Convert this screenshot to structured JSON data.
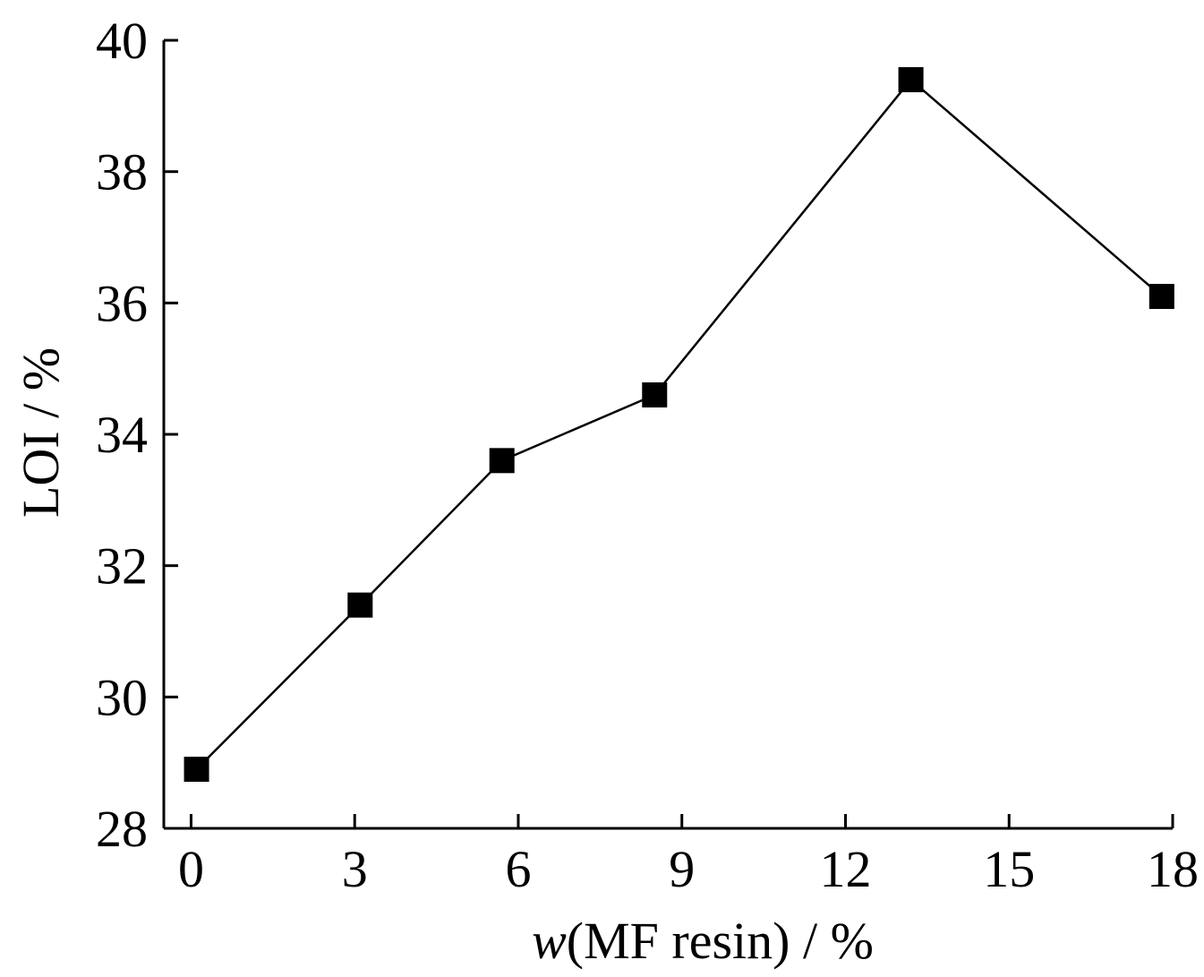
{
  "chart_data": {
    "type": "line",
    "title": "",
    "xlabel_italic": "w",
    "xlabel_rest": "(MF resin) / %",
    "ylabel": "LOI / %",
    "xlim": [
      -0.5,
      18
    ],
    "ylim": [
      28,
      40
    ],
    "x_ticks": [
      0,
      3,
      6,
      9,
      12,
      15,
      18
    ],
    "y_ticks": [
      28,
      30,
      32,
      34,
      36,
      38,
      40
    ],
    "grid": false,
    "marker": "square",
    "colors": {
      "line": "#000000",
      "marker": "#000000",
      "axis": "#000000"
    },
    "series": [
      {
        "x": [
          0.1,
          3.1,
          5.7,
          8.5,
          13.2,
          17.8
        ],
        "y": [
          28.9,
          31.4,
          33.6,
          34.6,
          39.4,
          36.1
        ]
      }
    ]
  }
}
